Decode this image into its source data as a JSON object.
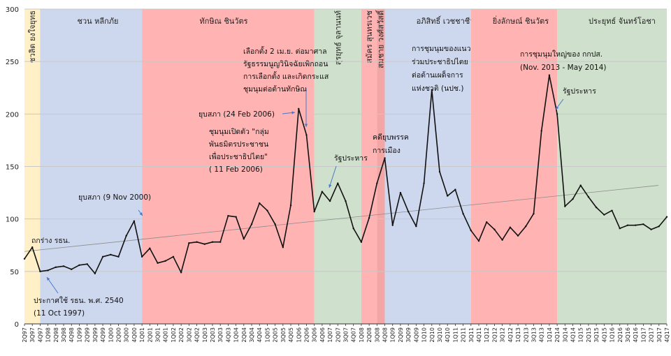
{
  "chart_data": {
    "type": "line",
    "title": "",
    "xlabel": "",
    "ylabel": "",
    "ylim": [
      0,
      300
    ],
    "yticks": [
      0,
      50,
      100,
      150,
      200,
      250,
      300
    ],
    "grid": true,
    "categories": [
      "2Q97",
      "3Q97",
      "4Q97",
      "1Q98",
      "2Q98",
      "3Q98",
      "4Q98",
      "1Q99",
      "2Q99",
      "3Q99",
      "4Q99",
      "1Q00",
      "2Q00",
      "3Q00",
      "4Q00",
      "1Q01",
      "2Q01",
      "3Q01",
      "4Q01",
      "1Q02",
      "2Q02",
      "3Q02",
      "4Q02",
      "1Q03",
      "2Q03",
      "3Q03",
      "4Q03",
      "1Q04",
      "2Q04",
      "3Q04",
      "4Q04",
      "1Q05",
      "2Q05",
      "3Q05",
      "4Q05",
      "1Q06",
      "2Q06",
      "3Q06",
      "4Q06",
      "1Q07",
      "2Q07",
      "3Q07",
      "4Q07",
      "1Q08",
      "2Q08",
      "3Q08",
      "4Q08",
      "1Q09",
      "2Q09",
      "3Q09",
      "4Q09",
      "1Q10",
      "2Q10",
      "3Q10",
      "4Q10",
      "1Q11",
      "2Q11",
      "3Q11",
      "4Q11",
      "1Q12",
      "2Q12",
      "3Q12",
      "4Q12",
      "1Q13",
      "2Q13",
      "3Q13",
      "4Q13",
      "1Q14",
      "2Q14",
      "3Q14",
      "4Q14",
      "1Q15",
      "2Q15",
      "3Q15",
      "4Q15",
      "1Q16",
      "2Q16",
      "3Q16",
      "4Q16",
      "1Q17",
      "2Q17",
      "3Q17",
      "4Q17"
    ],
    "series": [
      {
        "name": "",
        "color": "#111111",
        "values": [
          62,
          73,
          50,
          51,
          54,
          55,
          52,
          56,
          57,
          48,
          64,
          66,
          64,
          84,
          98,
          64,
          72,
          58,
          60,
          64,
          49,
          77,
          78,
          76,
          78,
          78,
          103,
          102,
          81,
          95,
          115,
          108,
          95,
          73,
          113,
          205,
          180,
          107,
          126,
          117,
          134,
          117,
          91,
          78,
          101,
          134,
          158,
          94,
          125,
          107,
          93,
          134,
          223,
          145,
          122,
          128,
          105,
          89,
          79,
          97,
          90,
          80,
          92,
          84,
          93,
          105,
          184,
          237,
          200,
          112,
          119,
          132,
          121,
          111,
          104,
          108,
          91,
          94,
          94,
          95,
          90,
          93,
          102
        ]
      }
    ],
    "trendline": {
      "from": 69,
      "to": 132,
      "color": "#8c8c8c"
    },
    "eras": [
      {
        "label": "ชวลิต ยงใจยุทธ",
        "start": "2Q97",
        "end": "4Q97",
        "color": "#fff0c8",
        "vertical": true
      },
      {
        "label": "ชวน หลีกภัย",
        "start": "4Q97",
        "end": "1Q01",
        "color": "#cdd7ee",
        "vertical": false
      },
      {
        "label": "ทักษิณ ชินวัตร",
        "start": "1Q01",
        "end": "3Q06",
        "color": "#ffb3b3",
        "vertical": false
      },
      {
        "label": "สุรยุทธ์ จุลานนท์",
        "start": "3Q06",
        "end": "1Q08",
        "color": "#cfe0cc",
        "vertical": true
      },
      {
        "label": "สมัคร สุนทรเวช",
        "start": "1Q08",
        "end": "3Q08",
        "color": "#ffb3b3",
        "vertical": true
      },
      {
        "label": "สมชาย วงศ์สวัสดิ์",
        "start": "3Q08",
        "end": "4Q08",
        "color": "#f2a6a6",
        "vertical": true
      },
      {
        "label": "อภิสิทธิ์ เวชชาชีวะ",
        "start": "4Q08",
        "end": "3Q11",
        "color": "#cdd7ee",
        "vertical": false
      },
      {
        "label": "ยิ่งลักษณ์ ชินวัตร",
        "start": "3Q11",
        "end": "2Q14",
        "color": "#ffb3b3",
        "vertical": false
      },
      {
        "label": "ประยุทธ์ จันทร์โอชา",
        "start": "2Q14",
        "end": "4Q17",
        "color": "#cfe0cc",
        "vertical": false
      }
    ],
    "annotations": [
      {
        "lines": [
          "ถกร่าง รธน."
        ]
      },
      {
        "lines": [
          "ประกาศใช้ รธน. พ.ศ. 2540",
          "(11 Oct 1997)"
        ]
      },
      {
        "lines": [
          "ยุบสภา (9 Nov 2000)"
        ]
      },
      {
        "lines": [
          "ยุบสภา (24 Feb 2006)"
        ]
      },
      {
        "lines": [
          "ชุมนุมเปิดตัว \"กลุ่ม",
          "พันธมิตรประชาชน",
          "เพื่อประชาธิปไตย\"",
          "( 11 Feb 2006)"
        ]
      },
      {
        "lines": [
          "เลือกตั้ง 2 เม.ย. ต่อมาศาล",
          "รัฐธรรมนูญวินิจฉัยเพิกถอน",
          "การเลือกตั้ง และเกิดกระแส",
          "ชุมนุมต่อต้านทักษิณ"
        ]
      },
      {
        "lines": [
          "รัฐประหาร"
        ]
      },
      {
        "lines": [
          "คดียุบพรรค",
          "การเมือง"
        ]
      },
      {
        "lines": [
          "การชุมนุมของแนว",
          "ร่วมประชาธิปไตย",
          "ต่อต้านเผด็จการ",
          "แห่งชาติ (นปช.)"
        ]
      },
      {
        "lines": [
          "การชุมนุมใหญ่ของ กกปส.",
          "(Nov. 2013 - May 2014)"
        ]
      },
      {
        "lines": [
          "รัฐประหาร"
        ]
      }
    ]
  }
}
